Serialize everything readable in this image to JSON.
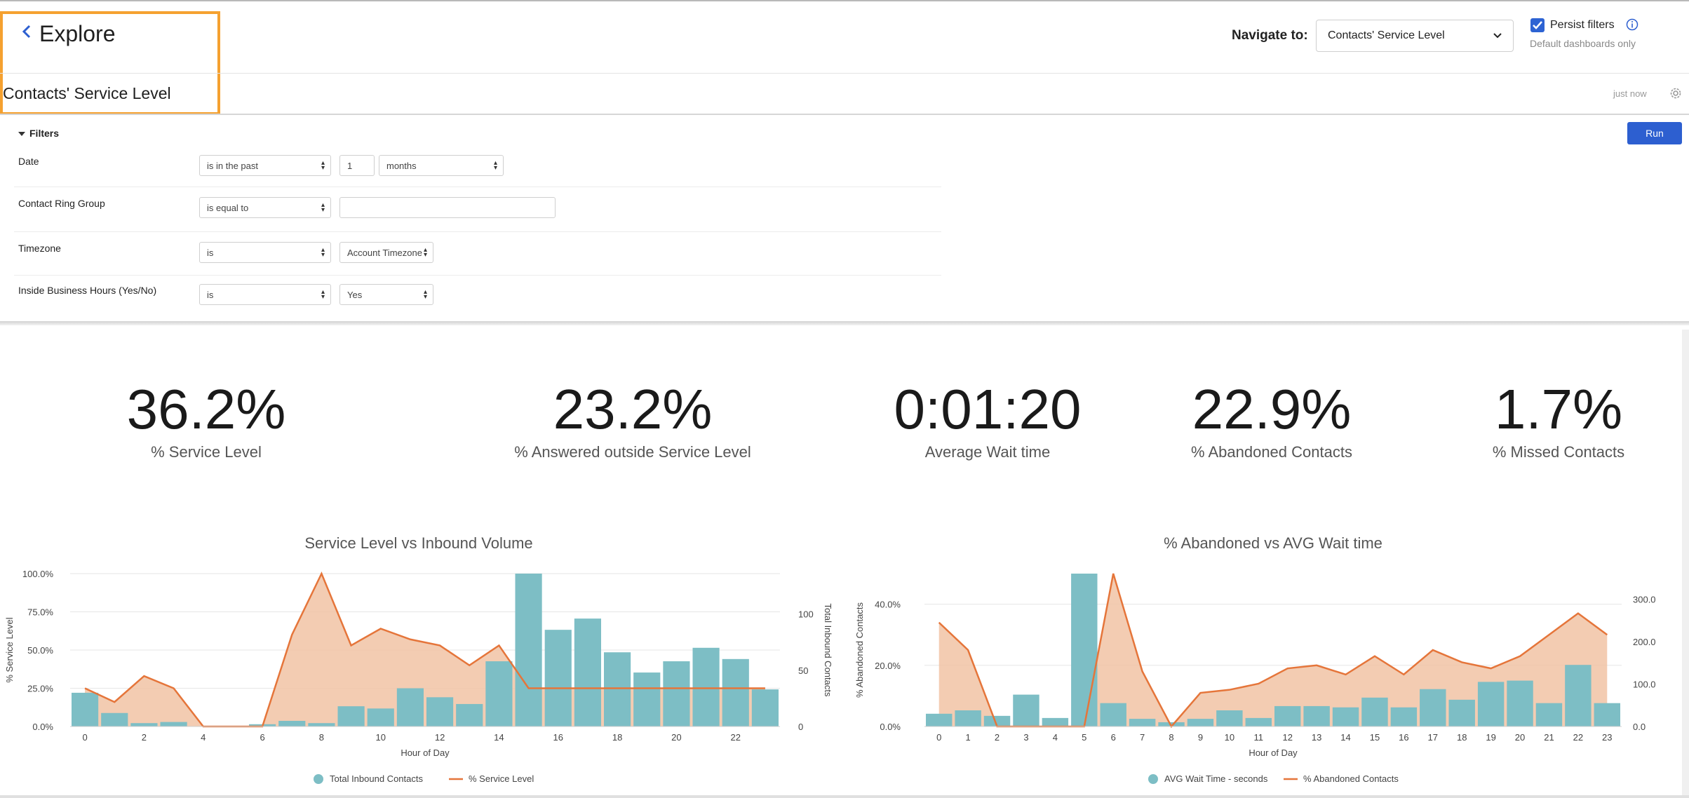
{
  "header": {
    "back_label": "Explore",
    "dashboard_title": "Contacts' Service Level",
    "navigate_label": "Navigate to:",
    "navigate_value": "Contacts' Service Level",
    "persist_label": "Persist filters",
    "persist_checked": true,
    "persist_sub": "Default dashboards only",
    "updated": "just now",
    "highlight_color": "#f5a130"
  },
  "filters": {
    "toggle_label": "Filters",
    "run_label": "Run",
    "rows": [
      {
        "label": "Date",
        "operator": "is in the past",
        "value": "1",
        "unit": "months"
      },
      {
        "label": "Contact Ring Group",
        "operator": "is equal to",
        "value": ""
      },
      {
        "label": "Timezone",
        "operator": "is",
        "value": "Account Timezone"
      },
      {
        "label": "Inside Business Hours (Yes/No)",
        "operator": "is",
        "value": "Yes"
      }
    ]
  },
  "kpis": [
    {
      "value": "36.2%",
      "label": "% Service Level"
    },
    {
      "value": "23.2%",
      "label": "% Answered outside Service Level"
    },
    {
      "value": "0:01:20",
      "label": "Average Wait time"
    },
    {
      "value": "22.9%",
      "label": "% Abandoned Contacts"
    },
    {
      "value": "1.7%",
      "label": "% Missed Contacts"
    }
  ],
  "colors": {
    "bar": "#7dbec5",
    "line": "#e5753a",
    "area": "#f1c3a4",
    "accent": "#2d5fd0"
  },
  "chart_data": [
    {
      "type": "bar",
      "title": "Service Level vs Inbound Volume",
      "xlabel": "Hour of Day",
      "ylabel": "% Service Level",
      "ylabel_right": "Total Inbound Contacts",
      "x": [
        0,
        1,
        2,
        3,
        4,
        5,
        6,
        7,
        8,
        9,
        10,
        11,
        12,
        13,
        14,
        15,
        16,
        17,
        18,
        19,
        20,
        21,
        22,
        23
      ],
      "x_ticks": [
        "0",
        "2",
        "4",
        "6",
        "8",
        "10",
        "12",
        "14",
        "16",
        "18",
        "20",
        "22"
      ],
      "y_ticks_left": [
        "0.0%",
        "25.0%",
        "50.0%",
        "75.0%",
        "100.0%"
      ],
      "y_ticks_right": [
        "0",
        "50",
        "100"
      ],
      "ylim_left": [
        0,
        100
      ],
      "ylim_right": [
        0,
        136
      ],
      "legend_position": "bottom",
      "series": [
        {
          "name": "Total Inbound Contacts",
          "kind": "bar",
          "axis": "right",
          "values": [
            30,
            12,
            3,
            4,
            0,
            0,
            2,
            5,
            3,
            18,
            16,
            34,
            26,
            20,
            58,
            136,
            86,
            96,
            66,
            48,
            58,
            70,
            60,
            33
          ]
        },
        {
          "name": "% Service Level",
          "kind": "area",
          "axis": "left",
          "values": [
            25,
            16,
            33,
            25,
            0,
            0,
            0,
            60,
            100,
            53,
            64,
            57,
            53,
            40,
            53,
            25,
            25,
            25,
            25,
            25,
            25,
            25,
            25,
            25
          ]
        }
      ]
    },
    {
      "type": "bar",
      "title": "% Abandoned vs AVG Wait time",
      "xlabel": "Hour of Day",
      "ylabel": "% Abandoned Contacts",
      "x": [
        0,
        1,
        2,
        3,
        4,
        5,
        6,
        7,
        8,
        9,
        10,
        11,
        12,
        13,
        14,
        15,
        16,
        17,
        18,
        19,
        20,
        21,
        22,
        23
      ],
      "x_ticks": [
        "0",
        "1",
        "2",
        "3",
        "4",
        "5",
        "6",
        "7",
        "8",
        "9",
        "10",
        "11",
        "12",
        "13",
        "14",
        "15",
        "16",
        "17",
        "18",
        "19",
        "20",
        "21",
        "22",
        "23"
      ],
      "y_ticks_left": [
        "0.0%",
        "20.0%",
        "40.0%"
      ],
      "y_ticks_right": [
        "0.0",
        "100.0",
        "200.0",
        "300.0"
      ],
      "ylim_left": [
        0,
        50
      ],
      "ylim_right": [
        0,
        360
      ],
      "legend_position": "bottom",
      "series": [
        {
          "name": "AVG Wait Time - seconds",
          "kind": "bar",
          "axis": "right",
          "values": [
            30,
            38,
            25,
            75,
            20,
            360,
            55,
            18,
            10,
            18,
            38,
            20,
            48,
            48,
            45,
            68,
            45,
            88,
            63,
            105,
            108,
            55,
            145,
            55
          ]
        },
        {
          "name": "% Abandoned Contacts",
          "kind": "area",
          "axis": "left",
          "values": [
            34,
            25,
            0,
            0,
            0,
            0,
            50,
            18,
            0,
            11,
            12,
            14,
            19,
            20,
            17,
            23,
            17,
            25,
            21,
            19,
            23,
            30,
            37,
            30
          ]
        }
      ]
    }
  ]
}
